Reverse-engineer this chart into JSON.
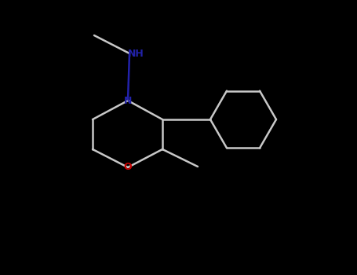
{
  "background_color": "#000000",
  "bond_color": "#c8c8c8",
  "N_color": "#2222aa",
  "O_color": "#cc0000",
  "lw": 1.8,
  "figsize": [
    4.55,
    3.5
  ],
  "dpi": 100,
  "NH_fontsize": 9,
  "N_fontsize": 9,
  "O_fontsize": 9,
  "xlim": [
    0,
    455
  ],
  "ylim": [
    0,
    350
  ]
}
